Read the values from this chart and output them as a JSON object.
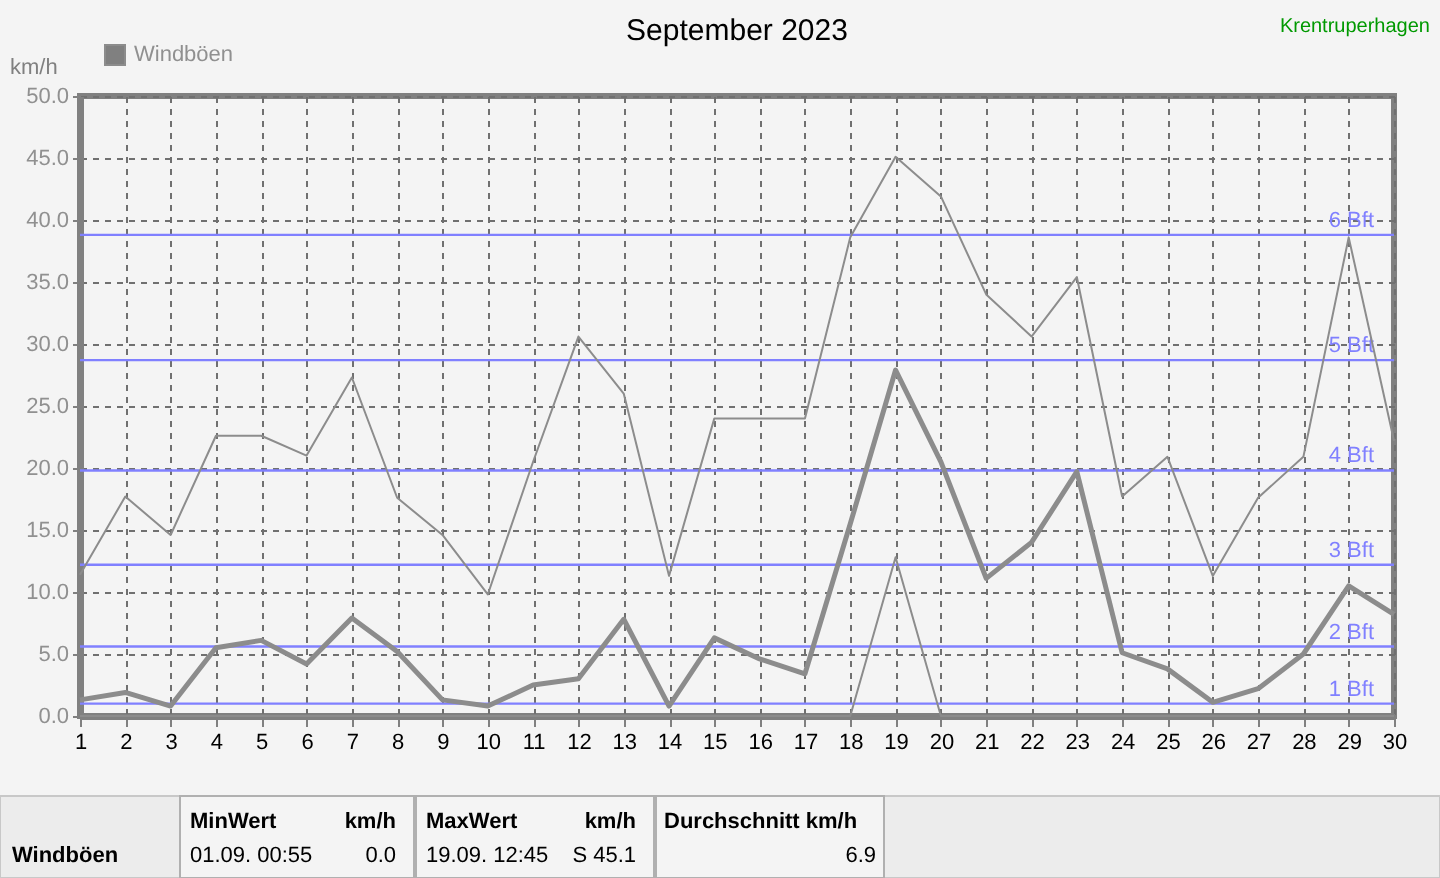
{
  "chart_data": {
    "type": "line",
    "title": "September 2023",
    "ylabel": "km/h",
    "x": [
      1,
      2,
      3,
      4,
      5,
      6,
      7,
      8,
      9,
      10,
      11,
      12,
      13,
      14,
      15,
      16,
      17,
      18,
      19,
      20,
      21,
      22,
      23,
      24,
      25,
      26,
      27,
      28,
      29,
      30
    ],
    "xlim": [
      1,
      30
    ],
    "xticks": [
      1,
      2,
      3,
      4,
      5,
      6,
      7,
      8,
      9,
      10,
      11,
      12,
      13,
      14,
      15,
      16,
      17,
      18,
      19,
      20,
      21,
      22,
      23,
      24,
      25,
      26,
      27,
      28,
      29,
      30
    ],
    "ylim": [
      0,
      50
    ],
    "yticks": [
      {
        "value": 0,
        "label": "0.0"
      },
      {
        "value": 5,
        "label": "5.0"
      },
      {
        "value": 10,
        "label": "10.0"
      },
      {
        "value": 15,
        "label": "15.0"
      },
      {
        "value": 20,
        "label": "20.0"
      },
      {
        "value": 25,
        "label": "25.0"
      },
      {
        "value": 30,
        "label": "30.0"
      },
      {
        "value": 35,
        "label": "35.0"
      },
      {
        "value": 40,
        "label": "40.0"
      },
      {
        "value": 45,
        "label": "45.0"
      },
      {
        "value": 50,
        "label": "50.0"
      }
    ],
    "series": [
      {
        "name": "Windböen",
        "color": "#8c8c8c",
        "values": [
          1.3,
          1.9,
          0.8,
          5.5,
          6.1,
          4.2,
          7.9,
          5.2,
          1.3,
          0.8,
          2.5,
          3.0,
          7.8,
          0.8,
          6.3,
          4.6,
          3.4,
          15.5,
          27.9,
          20.5,
          11.1,
          14.0,
          19.7,
          5.1,
          3.8,
          1.1,
          2.2,
          5.0,
          10.5,
          8.2
        ]
      },
      {
        "color": "#8c8c8c",
        "values": [
          11.4,
          17.7,
          14.6,
          22.6,
          22.6,
          21.0,
          27.3,
          17.6,
          14.6,
          9.8,
          20.5,
          30.6,
          26.0,
          11.3,
          24.0,
          24.0,
          24.0,
          38.6,
          45.1,
          41.9,
          34.0,
          30.6,
          35.4,
          17.7,
          20.9,
          11.3,
          17.6,
          20.9,
          38.6,
          22.2
        ]
      },
      {
        "color": "#8c8c8c",
        "values": [
          0,
          0,
          0,
          0,
          0,
          0,
          0,
          0,
          0,
          0,
          0,
          0,
          0,
          0,
          0,
          0,
          0,
          0,
          12.8,
          0,
          0,
          0,
          0,
          0,
          0,
          0,
          0,
          0,
          0,
          0
        ]
      }
    ],
    "ref_lines": [
      {
        "axis": "y",
        "value": 1.0,
        "label": "1 Bft",
        "color": "#8080ff"
      },
      {
        "axis": "y",
        "value": 5.6,
        "label": "2 Bft",
        "color": "#8080ff"
      },
      {
        "axis": "y",
        "value": 12.2,
        "label": "3 Bft",
        "color": "#8080ff"
      },
      {
        "axis": "y",
        "value": 19.8,
        "label": "4 Bft",
        "color": "#8080ff"
      },
      {
        "axis": "y",
        "value": 28.7,
        "label": "5 Bft",
        "color": "#8080ff"
      },
      {
        "axis": "y",
        "value": 38.8,
        "label": "6 Bft",
        "color": "#8080ff"
      }
    ],
    "annotations": [
      "Krentruperhagen",
      "Windböen",
      "MinWert",
      "km/h",
      "01.09.  00:55",
      "0.0",
      "MaxWert",
      "km/h",
      "19.09.  12:45",
      "S 45.1",
      "Durchschnitt km/h",
      "6.9"
    ],
    "grid": true,
    "legend": "top left",
    "marker": "none",
    "line_style": "solid"
  }
}
